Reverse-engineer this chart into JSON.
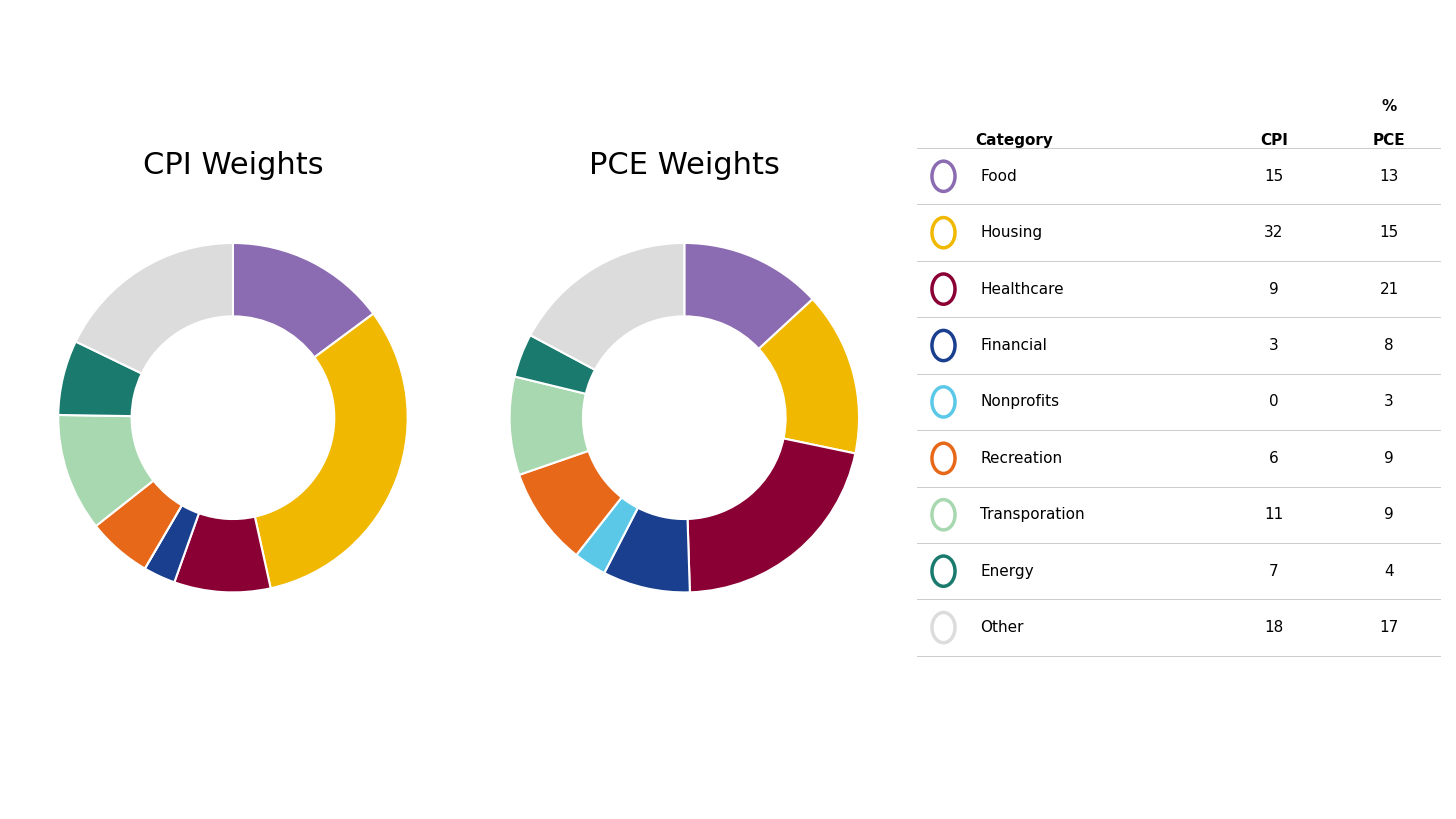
{
  "cpi_title": "CPI Weights",
  "pce_title": "PCE Weights",
  "categories": [
    "Food",
    "Housing",
    "Healthcare",
    "Financial",
    "Nonprofits",
    "Recreation",
    "Transporation",
    "Energy",
    "Other"
  ],
  "cpi_values": [
    15,
    32,
    9,
    3,
    0,
    6,
    11,
    7,
    18
  ],
  "pce_values": [
    13,
    15,
    21,
    8,
    3,
    9,
    9,
    4,
    17
  ],
  "colors": [
    "#8B6BB1",
    "#F0B800",
    "#8B0034",
    "#1A3F8F",
    "#5BC8E8",
    "#E8681A",
    "#A8D8B0",
    "#1A7A6E",
    "#DCDCDC"
  ],
  "background_color": "#FFFFFF",
  "title_fontsize": 22,
  "label_fontsize": 11
}
